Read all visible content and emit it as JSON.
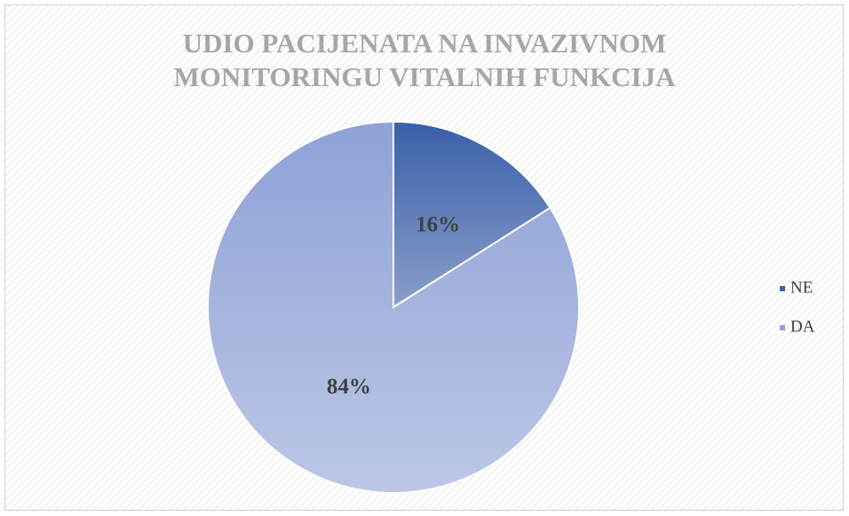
{
  "chart_data": {
    "type": "pie",
    "title": "UDIO PACIJENATA NA INVAZIVNOM MONITORINGU VITALNIH FUNKCIJA",
    "categories": [
      "NE",
      "DA"
    ],
    "values": [
      16,
      84
    ],
    "value_labels": [
      "16%",
      "84%"
    ],
    "colors": [
      "#3a5fa8",
      "#8fa2d6"
    ],
    "legend": "right"
  }
}
